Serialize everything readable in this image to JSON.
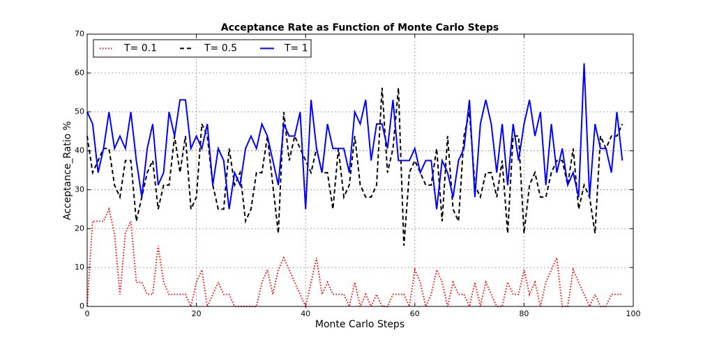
{
  "chart_data": {
    "type": "line",
    "title": "Acceptance Rate as Function of Monte Carlo Steps",
    "x_label": "Monte Carlo Steps",
    "y_label": "Acceptance_Ratio %",
    "x": [
      0,
      1,
      2,
      3,
      4,
      5,
      6,
      7,
      8,
      9,
      10,
      11,
      12,
      13,
      14,
      15,
      16,
      17,
      18,
      19,
      20,
      21,
      22,
      23,
      24,
      25,
      26,
      27,
      28,
      29,
      30,
      31,
      32,
      33,
      34,
      35,
      36,
      37,
      38,
      39,
      40,
      41,
      42,
      43,
      44,
      45,
      46,
      47,
      48,
      49,
      50,
      51,
      52,
      53,
      54,
      55,
      56,
      57,
      58,
      59,
      60,
      61,
      62,
      63,
      64,
      65,
      66,
      67,
      68,
      69,
      70,
      71,
      72,
      73,
      74,
      75,
      76,
      77,
      78,
      79,
      80,
      81,
      82,
      83,
      84,
      85,
      86,
      87,
      88,
      89,
      90,
      91,
      92,
      93,
      94,
      95,
      96,
      97,
      98
    ],
    "series": [
      {
        "name": "T= 0.1",
        "color": "#ff0000",
        "linestyle": "dotted",
        "values": [
          0,
          21.9,
          21.9,
          21.9,
          25,
          18.8,
          3.1,
          18.8,
          21.9,
          6.2,
          6.2,
          3.1,
          3.1,
          15.6,
          6.2,
          3.1,
          3.1,
          3.1,
          3.1,
          0,
          6.2,
          9.4,
          0,
          3.1,
          6.2,
          3.1,
          3.1,
          0,
          0,
          0,
          0,
          0,
          6.2,
          9.4,
          3.1,
          9.4,
          12.5,
          9.4,
          6.2,
          3.1,
          0,
          6.2,
          12.5,
          3.1,
          6.2,
          3.1,
          3.1,
          3.1,
          0,
          6.2,
          0,
          3.1,
          0,
          3.1,
          0,
          0,
          3.1,
          3.1,
          3.1,
          0,
          9.4,
          6.2,
          0,
          3.1,
          9.4,
          6.2,
          0,
          6.2,
          3.1,
          3.1,
          0,
          6.2,
          0,
          6.2,
          3.1,
          0,
          0,
          6.2,
          3.1,
          3.1,
          9.4,
          3.1,
          6.2,
          0,
          6.2,
          9.4,
          12.5,
          0,
          0,
          9.4,
          6.2,
          3.1,
          0,
          3.1,
          0,
          0,
          3.1,
          3.1,
          3.1
        ]
      },
      {
        "name": "T= 0.5",
        "color": "#000000",
        "linestyle": "dashed",
        "values": [
          43.8,
          34.4,
          37.5,
          40.6,
          40.6,
          31.2,
          28.1,
          37.5,
          37.5,
          21.9,
          28.1,
          34.4,
          37.5,
          25,
          31.2,
          31.2,
          43.8,
          34.4,
          43.8,
          25,
          28.1,
          46.9,
          43.8,
          31.2,
          25,
          25,
          40.6,
          31.2,
          34.4,
          21.9,
          25,
          34.4,
          34.4,
          43.8,
          31.2,
          18.8,
          50,
          37.5,
          43.8,
          40.6,
          37.5,
          34.4,
          40.6,
          34.4,
          34.4,
          25,
          40.6,
          28.1,
          31.2,
          43.8,
          31.2,
          28.1,
          28.1,
          31.2,
          56.2,
          34.4,
          40.6,
          56.2,
          15.6,
          34.4,
          37.5,
          34.4,
          31.2,
          31.2,
          40.6,
          21.9,
          43.8,
          25,
          21.9,
          43.8,
          50,
          31.2,
          28.1,
          34.4,
          34.4,
          28.1,
          37.5,
          18.8,
          43.8,
          43.8,
          18.8,
          31.2,
          34.4,
          28.1,
          28.1,
          34.4,
          37.5,
          37.5,
          31.2,
          40.6,
          25,
          31.2,
          28.1,
          18.8,
          43.8,
          40.6,
          43.8,
          43.8,
          46.9
        ]
      },
      {
        "name": "T= 1",
        "color": "#0000ff",
        "linestyle": "solid",
        "values": [
          50,
          46.9,
          34.4,
          40.6,
          50,
          40.6,
          43.8,
          40.6,
          50,
          37.5,
          28.1,
          40.6,
          46.9,
          31.2,
          34.4,
          50,
          43.8,
          53.1,
          53.1,
          40.6,
          43.8,
          40.6,
          46.9,
          31.2,
          40.6,
          37.5,
          25,
          34.4,
          31.2,
          40.6,
          43.8,
          40.6,
          46.9,
          43.8,
          37.5,
          31.2,
          46.9,
          43.8,
          43.8,
          50,
          25,
          53.1,
          40.6,
          34.4,
          46.9,
          40.6,
          40.6,
          40.6,
          34.4,
          50,
          46.9,
          53.1,
          37.5,
          46.9,
          46.9,
          40.6,
          53.1,
          37.5,
          37.5,
          37.5,
          40.6,
          34.4,
          37.5,
          37.5,
          25,
          37.5,
          34.4,
          28.1,
          37.5,
          40.6,
          53.1,
          28.1,
          46.9,
          53.1,
          46.9,
          34.4,
          46.9,
          31.2,
          46.9,
          37.5,
          46.9,
          53.1,
          43.8,
          50,
          31.2,
          46.9,
          34.4,
          40.6,
          31.2,
          34.4,
          28.1,
          62.5,
          28.1,
          46.9,
          40.6,
          40.6,
          34.4,
          50,
          37.5
        ]
      }
    ],
    "xlim": [
      0,
      100
    ],
    "xticks": [
      0,
      20,
      40,
      60,
      80,
      100
    ],
    "ylim": [
      0,
      70
    ],
    "yticks": [
      0,
      10,
      20,
      30,
      40,
      50,
      60,
      70
    ],
    "grid": true,
    "legend": "upper left"
  }
}
